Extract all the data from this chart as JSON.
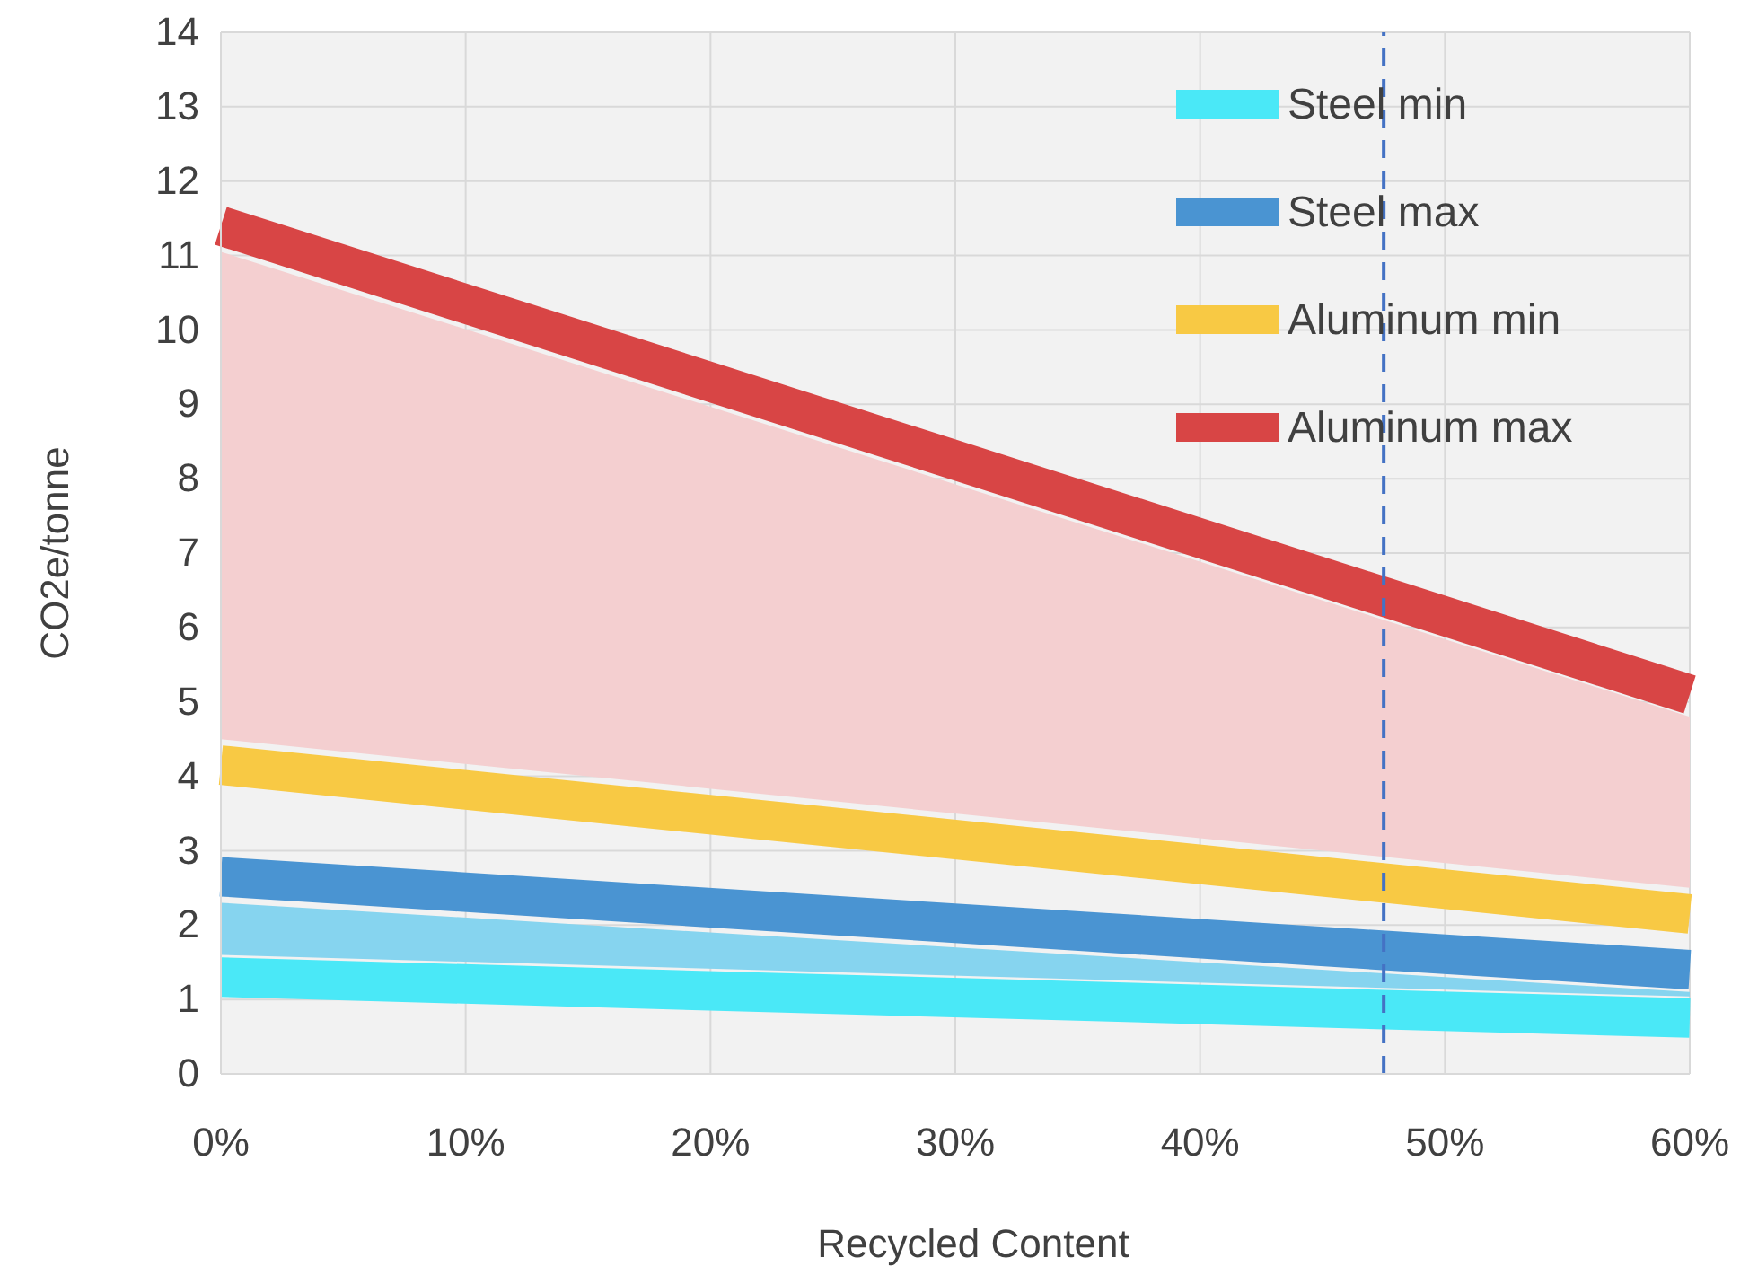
{
  "chart_data": {
    "type": "line",
    "xlabel": "Recycled Content",
    "ylabel": "CO2e/tonne",
    "x": [
      0,
      60
    ],
    "xlim": [
      0,
      60
    ],
    "xticks": [
      {
        "value": 0,
        "label": "0%"
      },
      {
        "value": 10,
        "label": "10%"
      },
      {
        "value": 20,
        "label": "20%"
      },
      {
        "value": 30,
        "label": "30%"
      },
      {
        "value": 40,
        "label": "40%"
      },
      {
        "value": 50,
        "label": "50%"
      },
      {
        "value": 60,
        "label": "60%"
      }
    ],
    "ylim": [
      0,
      14
    ],
    "yticks": [
      0,
      1,
      2,
      3,
      4,
      5,
      6,
      7,
      8,
      9,
      10,
      11,
      12,
      13,
      14
    ],
    "grid": true,
    "legend": "top right",
    "series": [
      {
        "color": "#f4cfd0",
        "values": [
          null,
          null
        ],
        "lower": [
          4.5,
          2.5
        ],
        "upper": [
          11.05,
          4.8
        ]
      },
      {
        "color": "#86d4ef",
        "values": [
          null,
          null
        ],
        "lower": [
          1.6,
          1.04
        ],
        "upper": [
          2.3,
          1.1
        ]
      },
      {
        "name": "Steel min",
        "color": "#4ae8f7",
        "values": [
          1.3,
          0.75
        ]
      },
      {
        "name": "Steel max",
        "color": "#4a94d2",
        "values": [
          2.65,
          1.4
        ]
      },
      {
        "name": "Aluminum min",
        "color": "#f8c944",
        "values": [
          4.15,
          2.15
        ]
      },
      {
        "name": "Aluminum max",
        "color": "#d84545",
        "values": [
          11.4,
          5.1
        ]
      }
    ],
    "ref_lines": [
      {
        "axis": "x",
        "value": 47.5,
        "color": "#4472c4",
        "line_style": "dashed"
      }
    ]
  }
}
